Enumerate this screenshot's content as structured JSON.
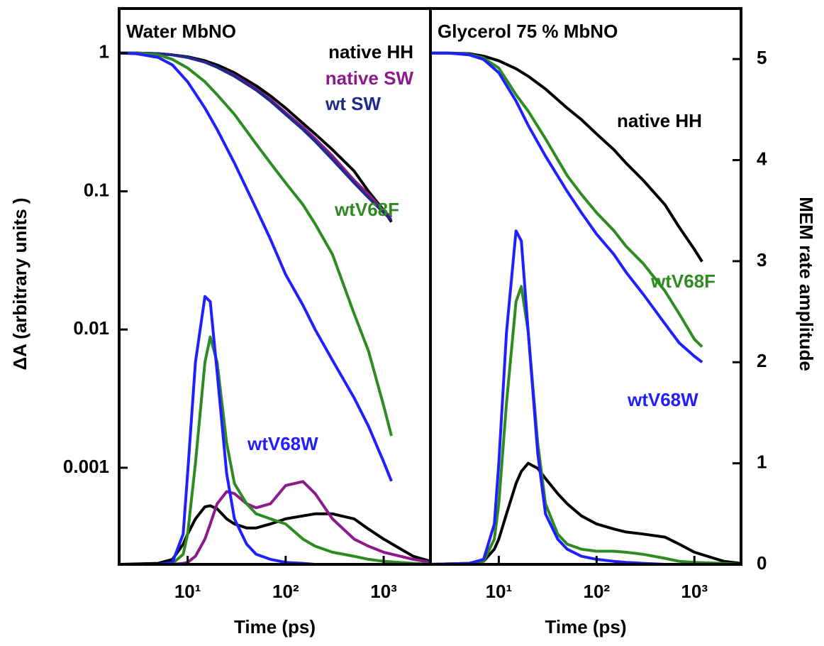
{
  "chart_data": [
    {
      "type": "line",
      "title": "Water MbNO",
      "xlabel": "Time (ps)",
      "ylabel": "ΔA (arbitrary units )",
      "xscale": "log",
      "yscale": "log",
      "xlim": [
        2,
        3000
      ],
      "ylim": [
        0.0002,
        2.1
      ],
      "y2lim": [
        0,
        5.5
      ],
      "xticks": [
        {
          "value": 10,
          "label": "10¹"
        },
        {
          "value": 100,
          "label": "10²"
        },
        {
          "value": 1000,
          "label": "10³"
        }
      ],
      "yticks": [
        1,
        0.1,
        0.01,
        0.001
      ],
      "series": [
        {
          "name": "native HH",
          "color": "#000000",
          "x": [
            2,
            3,
            5,
            7,
            10,
            15,
            20,
            30,
            50,
            70,
            100,
            150,
            200,
            300,
            500,
            700,
            1000,
            1200
          ],
          "values": [
            1,
            1,
            0.99,
            0.97,
            0.94,
            0.88,
            0.82,
            0.72,
            0.58,
            0.49,
            0.4,
            0.31,
            0.26,
            0.2,
            0.14,
            0.1,
            0.073,
            0.06
          ]
        },
        {
          "name": "native SW",
          "color": "#8b1a8b",
          "x": [
            2,
            3,
            5,
            7,
            10,
            15,
            20,
            30,
            50,
            70,
            100,
            150,
            200,
            300,
            500,
            700,
            1000,
            1200
          ],
          "values": [
            1,
            1,
            0.99,
            0.97,
            0.93,
            0.86,
            0.79,
            0.69,
            0.55,
            0.46,
            0.37,
            0.29,
            0.24,
            0.18,
            0.12,
            0.095,
            0.072,
            0.065
          ]
        },
        {
          "name": "wt SW",
          "color": "#1f2a8c",
          "x": [
            2,
            3,
            5,
            7,
            10,
            15,
            20,
            30,
            50,
            70,
            100,
            150,
            200,
            300,
            500,
            700,
            1000,
            1200
          ],
          "values": [
            1,
            1,
            0.99,
            0.97,
            0.93,
            0.86,
            0.79,
            0.68,
            0.54,
            0.45,
            0.36,
            0.28,
            0.23,
            0.17,
            0.115,
            0.09,
            0.07,
            0.062
          ]
        },
        {
          "name": "wtV68F",
          "color": "#2e8b22",
          "x": [
            2,
            3,
            5,
            7,
            10,
            15,
            20,
            30,
            50,
            70,
            100,
            150,
            200,
            300,
            500,
            700,
            1000,
            1200
          ],
          "values": [
            1,
            1,
            0.97,
            0.9,
            0.78,
            0.62,
            0.5,
            0.36,
            0.22,
            0.16,
            0.115,
            0.08,
            0.058,
            0.035,
            0.013,
            0.007,
            0.0028,
            0.0017
          ]
        },
        {
          "name": "wtV68W",
          "color": "#1f1fff",
          "x": [
            2,
            3,
            5,
            7,
            10,
            15,
            20,
            30,
            50,
            70,
            100,
            150,
            200,
            300,
            500,
            700,
            1000,
            1200
          ],
          "values": [
            1,
            0.99,
            0.93,
            0.82,
            0.62,
            0.4,
            0.28,
            0.16,
            0.075,
            0.045,
            0.025,
            0.015,
            0.01,
            0.006,
            0.0032,
            0.002,
            0.0011,
            0.0008
          ]
        },
        {
          "axis": "y2",
          "color": "#000000",
          "x": [
            2,
            5,
            7,
            9,
            10,
            12,
            15,
            17,
            20,
            25,
            30,
            40,
            50,
            70,
            100,
            150,
            200,
            300,
            500,
            700,
            1000,
            2000,
            3000
          ],
          "values": [
            0,
            0.01,
            0.05,
            0.2,
            0.3,
            0.45,
            0.57,
            0.58,
            0.55,
            0.45,
            0.4,
            0.36,
            0.36,
            0.4,
            0.45,
            0.48,
            0.5,
            0.5,
            0.45,
            0.35,
            0.25,
            0.08,
            0.03
          ]
        },
        {
          "axis": "y2",
          "color": "#8b1a8b",
          "x": [
            2,
            5,
            7,
            9,
            10,
            12,
            15,
            17,
            20,
            25,
            30,
            40,
            50,
            70,
            100,
            150,
            200,
            300,
            500,
            700,
            1000,
            2000,
            3000
          ],
          "values": [
            0,
            0,
            0,
            0.01,
            0.02,
            0.08,
            0.25,
            0.4,
            0.6,
            0.72,
            0.7,
            0.6,
            0.56,
            0.6,
            0.78,
            0.82,
            0.7,
            0.45,
            0.25,
            0.18,
            0.12,
            0.05,
            0.02
          ]
        },
        {
          "axis": "y2",
          "color": "#2e8b22",
          "x": [
            2,
            5,
            7,
            9,
            10,
            12,
            15,
            17,
            20,
            25,
            30,
            40,
            50,
            70,
            100,
            150,
            200,
            300,
            500,
            700,
            1000,
            2000,
            3000
          ],
          "values": [
            0,
            0,
            0.01,
            0.1,
            0.3,
            1.0,
            2.0,
            2.25,
            2.0,
            1.2,
            0.8,
            0.6,
            0.5,
            0.45,
            0.4,
            0.25,
            0.18,
            0.12,
            0.08,
            0.05,
            0.03,
            0.01,
            0
          ]
        },
        {
          "axis": "y2",
          "color": "#1f1fff",
          "x": [
            2,
            5,
            7,
            9,
            10,
            12,
            15,
            17,
            20,
            25,
            30,
            40,
            50,
            70,
            100,
            150,
            200,
            300,
            500,
            700,
            1000,
            2000,
            3000
          ],
          "values": [
            0,
            0,
            0.02,
            0.3,
            0.9,
            2.0,
            2.65,
            2.6,
            1.9,
            0.9,
            0.45,
            0.2,
            0.1,
            0.05,
            0.02,
            0.01,
            0,
            0,
            0,
            0,
            0,
            0,
            0
          ]
        }
      ]
    },
    {
      "type": "line",
      "title": "Glycerol 75 % MbNO",
      "xlabel": "Time (ps)",
      "y2label": "MEM rate amplitude",
      "xscale": "log",
      "yscale": "log",
      "xlim": [
        2,
        3000
      ],
      "ylim": [
        0.0002,
        2.1
      ],
      "y2lim": [
        0,
        5.5
      ],
      "xticks": [
        {
          "value": 10,
          "label": "10¹"
        },
        {
          "value": 100,
          "label": "10²"
        },
        {
          "value": 1000,
          "label": "10³"
        }
      ],
      "y2ticks": [
        0,
        1,
        2,
        3,
        4,
        5
      ],
      "series": [
        {
          "name": "native HH",
          "color": "#000000",
          "x": [
            2,
            3,
            5,
            7,
            10,
            15,
            20,
            30,
            50,
            70,
            100,
            150,
            200,
            300,
            500,
            700,
            1000,
            1200
          ],
          "values": [
            1,
            1,
            0.99,
            0.95,
            0.88,
            0.77,
            0.68,
            0.55,
            0.4,
            0.33,
            0.26,
            0.2,
            0.16,
            0.12,
            0.08,
            0.055,
            0.038,
            0.031
          ]
        },
        {
          "name": "wtV68F",
          "color": "#2e8b22",
          "x": [
            2,
            3,
            5,
            7,
            10,
            15,
            20,
            30,
            50,
            70,
            100,
            150,
            200,
            300,
            500,
            700,
            1000,
            1200
          ],
          "values": [
            1,
            1,
            0.98,
            0.92,
            0.78,
            0.5,
            0.38,
            0.24,
            0.13,
            0.095,
            0.07,
            0.052,
            0.04,
            0.03,
            0.019,
            0.013,
            0.0085,
            0.0075
          ]
        },
        {
          "name": "wtV68W",
          "color": "#1f1fff",
          "x": [
            2,
            3,
            5,
            7,
            10,
            15,
            20,
            30,
            50,
            70,
            100,
            150,
            200,
            300,
            500,
            700,
            1000,
            1200
          ],
          "values": [
            1,
            1,
            0.97,
            0.9,
            0.72,
            0.45,
            0.3,
            0.18,
            0.1,
            0.07,
            0.049,
            0.035,
            0.026,
            0.018,
            0.011,
            0.008,
            0.0064,
            0.0058
          ]
        },
        {
          "axis": "y2",
          "color": "#000000",
          "x": [
            2,
            5,
            7,
            9,
            10,
            12,
            15,
            17,
            20,
            25,
            30,
            40,
            50,
            70,
            100,
            150,
            200,
            300,
            500,
            700,
            1000,
            2000,
            3000
          ],
          "values": [
            0,
            0.01,
            0.03,
            0.15,
            0.25,
            0.5,
            0.8,
            0.92,
            1.0,
            0.95,
            0.85,
            0.7,
            0.6,
            0.48,
            0.4,
            0.35,
            0.32,
            0.3,
            0.27,
            0.2,
            0.12,
            0.03,
            0.01
          ]
        },
        {
          "axis": "y2",
          "color": "#2e8b22",
          "x": [
            2,
            5,
            7,
            9,
            10,
            12,
            15,
            17,
            20,
            25,
            30,
            40,
            50,
            70,
            100,
            150,
            200,
            300,
            500,
            700,
            1000,
            2000,
            3000
          ],
          "values": [
            0,
            0.01,
            0.03,
            0.25,
            0.6,
            1.6,
            2.6,
            2.75,
            2.3,
            1.2,
            0.6,
            0.3,
            0.2,
            0.15,
            0.13,
            0.13,
            0.12,
            0.1,
            0.06,
            0.03,
            0.02,
            0.01,
            0
          ]
        },
        {
          "axis": "y2",
          "color": "#1f1fff",
          "x": [
            2,
            5,
            7,
            9,
            10,
            12,
            15,
            17,
            20,
            25,
            30,
            40,
            50,
            70,
            100,
            150,
            200,
            300,
            500,
            700,
            1000,
            2000,
            3000
          ],
          "values": [
            0,
            0.01,
            0.05,
            0.4,
            1.0,
            2.3,
            3.3,
            3.2,
            2.3,
            1.1,
            0.5,
            0.25,
            0.15,
            0.08,
            0.05,
            0.03,
            0.02,
            0.01,
            0,
            0,
            0,
            0,
            0
          ]
        }
      ]
    }
  ]
}
